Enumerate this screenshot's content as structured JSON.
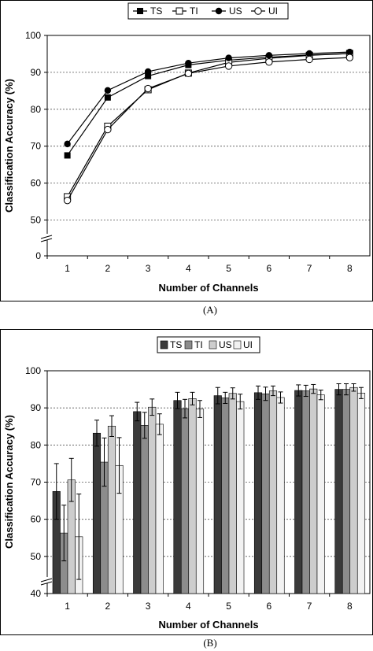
{
  "chart_data": [
    {
      "type": "line",
      "xlabel": "Number of Channels",
      "ylabel": "Classification Accuracy (%)",
      "caption": "(A)",
      "categories": [
        "1",
        "2",
        "3",
        "4",
        "5",
        "6",
        "7",
        "8"
      ],
      "y_ticks": [
        "0",
        "50",
        "60",
        "70",
        "80",
        "90",
        "100"
      ],
      "ylim": [
        45,
        100
      ],
      "axis_break": true,
      "grid": "horizontal dashed",
      "legend_position": "top",
      "series": [
        {
          "name": "TS",
          "marker": "square-filled",
          "values": [
            67.5,
            83.2,
            89.0,
            92.0,
            93.3,
            94.1,
            94.7,
            95.1
          ]
        },
        {
          "name": "TI",
          "marker": "square-open",
          "values": [
            56.3,
            75.4,
            85.3,
            89.8,
            92.7,
            93.8,
            94.6,
            95.1
          ]
        },
        {
          "name": "US",
          "marker": "circle-filled",
          "values": [
            70.6,
            85.1,
            90.2,
            92.5,
            93.9,
            94.6,
            95.1,
            95.5
          ]
        },
        {
          "name": "UI",
          "marker": "circle-open",
          "values": [
            55.3,
            74.5,
            85.6,
            89.7,
            91.7,
            92.8,
            93.5,
            94.0
          ]
        }
      ]
    },
    {
      "type": "bar",
      "xlabel": "Number of Channels",
      "ylabel": "Classification Accuracy (%)",
      "caption": "(B)",
      "categories": [
        "1",
        "2",
        "3",
        "4",
        "5",
        "6",
        "7",
        "8"
      ],
      "y_ticks": [
        "40",
        "50",
        "60",
        "70",
        "80",
        "90",
        "100"
      ],
      "ylim": [
        40,
        100
      ],
      "axis_break": true,
      "grid": "horizontal dashed",
      "legend_position": "top",
      "series": [
        {
          "name": "TS",
          "color": "#3a3a3a",
          "values": [
            67.5,
            83.2,
            89.0,
            92.0,
            93.3,
            94.1,
            94.7,
            95.0
          ],
          "errors": [
            7.5,
            3.5,
            2.5,
            2.2,
            2.2,
            1.8,
            1.5,
            1.5
          ]
        },
        {
          "name": "TI",
          "color": "#8c8c8c",
          "values": [
            56.3,
            75.4,
            85.3,
            89.8,
            92.7,
            93.8,
            94.6,
            95.0
          ],
          "errors": [
            7.5,
            6.5,
            3.5,
            2.5,
            1.5,
            1.8,
            1.5,
            1.5
          ]
        },
        {
          "name": "US",
          "color": "#cdcdcd",
          "values": [
            70.6,
            85.1,
            90.2,
            92.5,
            93.9,
            94.6,
            95.1,
            95.5
          ],
          "errors": [
            5.8,
            2.8,
            2.2,
            1.7,
            1.5,
            1.3,
            1.2,
            1.0
          ]
        },
        {
          "name": "UI",
          "color": "#f2f2f2",
          "values": [
            55.3,
            74.5,
            85.6,
            89.7,
            91.7,
            92.8,
            93.5,
            94.0
          ],
          "errors": [
            11.5,
            7.5,
            2.8,
            2.3,
            2.0,
            1.5,
            1.3,
            1.5
          ]
        }
      ]
    }
  ]
}
